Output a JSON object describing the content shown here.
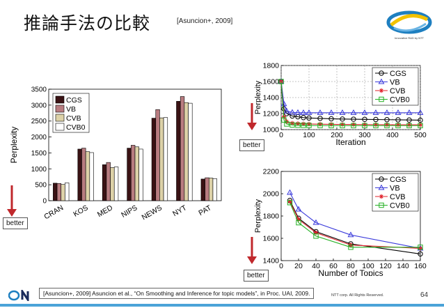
{
  "slide": {
    "title": "推論手法の比較",
    "citation_short": "[Asuncion+, 2009]",
    "logo_text": "Innovative R&D by NTT",
    "better_labels": [
      "better",
      "better",
      "better"
    ],
    "footer_citation": "[Asuncion+, 2009] Asuncion et al., “On Smoothing and Inference for topic models”, in Proc. UAI, 2009.",
    "copyright": "NTT corp. All Rights Reserved.",
    "page_number": "64",
    "colors": {
      "footer_bar": "#4aa3d8",
      "arrow": "#c0282c"
    }
  },
  "chart_data": [
    {
      "type": "bar",
      "ylabel": "Perplexity",
      "ylim": [
        0,
        3500
      ],
      "yticks": [
        0,
        500,
        1000,
        1500,
        2000,
        2500,
        3000,
        3500
      ],
      "categories": [
        "CRAN",
        "KOS",
        "MED",
        "NIPS",
        "NEWS",
        "NYT",
        "PAT"
      ],
      "legend_position": "top-left",
      "series": [
        {
          "name": "CGS",
          "color": "#3a1214",
          "values": [
            550,
            1620,
            1130,
            1650,
            2590,
            3120,
            680
          ]
        },
        {
          "name": "VB",
          "color": "#b87c80",
          "values": [
            540,
            1650,
            1200,
            1740,
            2860,
            3270,
            720
          ]
        },
        {
          "name": "CVB",
          "color": "#ddd2a8",
          "values": [
            510,
            1540,
            1040,
            1690,
            2600,
            3080,
            710
          ]
        },
        {
          "name": "CVB0",
          "color": "#ffffff",
          "values": [
            560,
            1510,
            1060,
            1620,
            2610,
            3060,
            690
          ]
        }
      ]
    },
    {
      "type": "line",
      "xlabel": "Iteration",
      "ylabel": "Perplexity",
      "xlim": [
        0,
        500
      ],
      "ylim": [
        1000,
        1800
      ],
      "xticks": [
        0,
        100,
        200,
        300,
        400,
        500
      ],
      "yticks": [
        1000,
        1200,
        1400,
        1600,
        1800
      ],
      "grid": true,
      "legend_position": "top-right",
      "x": [
        0,
        10,
        20,
        40,
        60,
        80,
        100,
        140,
        180,
        220,
        260,
        300,
        340,
        380,
        420,
        460,
        500
      ],
      "series": [
        {
          "name": "CGS",
          "color": "#000000",
          "marker": "circle",
          "values": [
            1600,
            1260,
            1200,
            1170,
            1160,
            1150,
            1145,
            1140,
            1135,
            1132,
            1130,
            1128,
            1126,
            1124,
            1122,
            1120,
            1118
          ]
        },
        {
          "name": "VB",
          "color": "#3a3adb",
          "marker": "triangle",
          "values": [
            1600,
            1320,
            1230,
            1215,
            1212,
            1210,
            1210,
            1210,
            1210,
            1210,
            1210,
            1210,
            1210,
            1210,
            1210,
            1210,
            1210
          ]
        },
        {
          "name": "CVB",
          "color": "#e0202a",
          "marker": "star",
          "values": [
            1600,
            1160,
            1100,
            1080,
            1075,
            1072,
            1070,
            1068,
            1066,
            1065,
            1064,
            1063,
            1062,
            1061,
            1060,
            1060,
            1060
          ]
        },
        {
          "name": "CVB0",
          "color": "#22b022",
          "marker": "square",
          "values": [
            1600,
            1120,
            1070,
            1058,
            1055,
            1053,
            1052,
            1051,
            1050,
            1050,
            1050,
            1050,
            1050,
            1050,
            1050,
            1050,
            1050
          ]
        }
      ]
    },
    {
      "type": "line",
      "xlabel": "Number of Topics",
      "ylabel": "Perplexity",
      "xlim": [
        0,
        160
      ],
      "ylim": [
        1400,
        2200
      ],
      "xticks": [
        0,
        20,
        40,
        60,
        80,
        100,
        120,
        140,
        160
      ],
      "yticks": [
        1400,
        1600,
        1800,
        2000,
        2200
      ],
      "grid": false,
      "legend_position": "top-right",
      "x": [
        10,
        20,
        40,
        80,
        160
      ],
      "series": [
        {
          "name": "CGS",
          "color": "#000000",
          "marker": "circle",
          "values": [
            1940,
            1780,
            1660,
            1550,
            1460
          ]
        },
        {
          "name": "VB",
          "color": "#3a3adb",
          "marker": "triangle",
          "values": [
            2010,
            1860,
            1740,
            1630,
            1510
          ]
        },
        {
          "name": "CVB",
          "color": "#e0202a",
          "marker": "star",
          "values": [
            1930,
            1770,
            1650,
            1540,
            1510
          ]
        },
        {
          "name": "CVB0",
          "color": "#22b022",
          "marker": "square",
          "values": [
            1920,
            1740,
            1620,
            1520,
            1520
          ]
        }
      ]
    }
  ]
}
